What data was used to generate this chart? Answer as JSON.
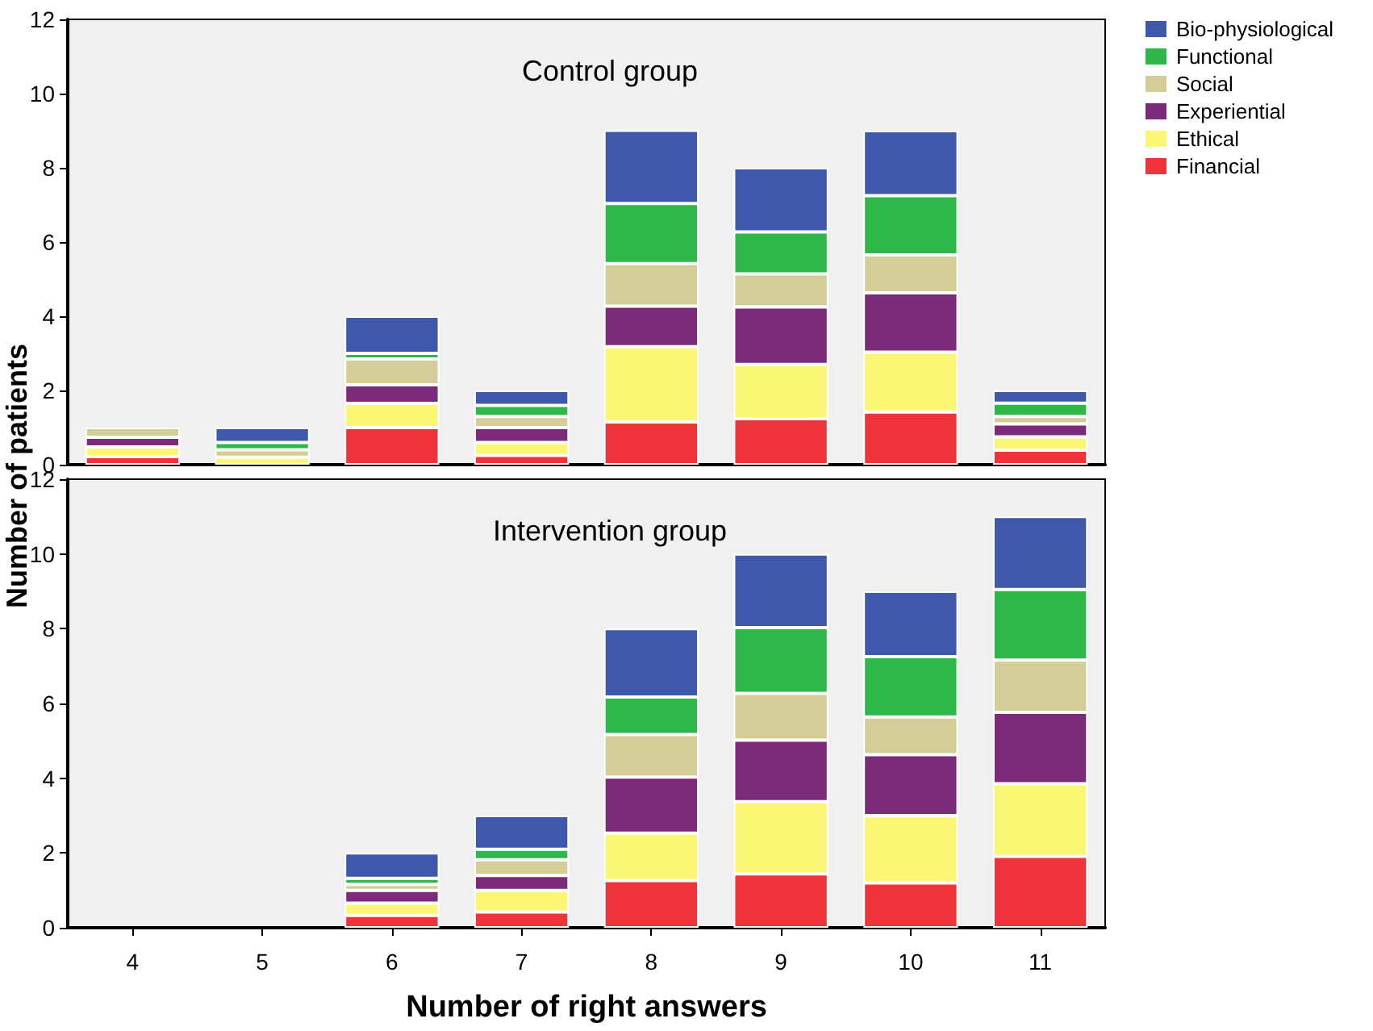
{
  "chart_data": [
    {
      "type": "bar",
      "title": "Control group",
      "ylabel": "Number of patients",
      "categories": [
        "4",
        "5",
        "6",
        "7",
        "8",
        "9",
        "10",
        "11"
      ],
      "stacked": true,
      "ylim": [
        0,
        12
      ],
      "yticks": [
        0,
        2,
        4,
        6,
        8,
        10,
        12
      ],
      "legend": "right",
      "tick_labels": "y",
      "grid": false,
      "series": [
        {
          "name": "Financial",
          "color": "#f0323a",
          "values": [
            0.22,
            0,
            1.0,
            0.25,
            1.15,
            1.24,
            1.42,
            0.39
          ]
        },
        {
          "name": "Ethical",
          "color": "#fbf774",
          "values": [
            0.26,
            0.2,
            0.65,
            0.35,
            2.03,
            1.46,
            1.61,
            0.36
          ]
        },
        {
          "name": "Experiential",
          "color": "#7c2a7a",
          "values": [
            0.26,
            0,
            0.5,
            0.4,
            1.09,
            1.55,
            1.6,
            0.35
          ]
        },
        {
          "name": "Social",
          "color": "#d4cd98",
          "values": [
            0.26,
            0.2,
            0.7,
            0.3,
            1.15,
            0.89,
            1.02,
            0.2
          ]
        },
        {
          "name": "Functional",
          "color": "#2fb84a",
          "values": [
            0,
            0.2,
            0.15,
            0.3,
            1.62,
            1.13,
            1.6,
            0.36
          ]
        },
        {
          "name": "Bio-physiological",
          "color": "#3e59ab",
          "values": [
            0,
            0.4,
            1.0,
            0.4,
            1.97,
            1.73,
            1.75,
            0.34
          ]
        }
      ]
    },
    {
      "type": "bar",
      "title": "Intervention group",
      "xlabel": "Number of right answers",
      "categories": [
        "4",
        "5",
        "6",
        "7",
        "8",
        "9",
        "10",
        "11"
      ],
      "stacked": true,
      "ylim": [
        0,
        12
      ],
      "yticks": [
        0,
        2,
        4,
        6,
        8,
        10,
        12
      ],
      "grid": false,
      "series": [
        {
          "color": "#f0323a",
          "values": [
            0,
            0,
            0.33,
            0.42,
            1.26,
            1.44,
            1.2,
            1.91
          ]
        },
        {
          "color": "#fbf774",
          "values": [
            0,
            0,
            0.33,
            0.58,
            1.27,
            1.93,
            1.8,
            1.94
          ]
        },
        {
          "color": "#7c2a7a",
          "values": [
            0,
            0,
            0.34,
            0.4,
            1.5,
            1.65,
            1.63,
            1.91
          ]
        },
        {
          "color": "#d4cd98",
          "values": [
            0,
            0,
            0.16,
            0.42,
            1.14,
            1.25,
            1.01,
            1.4
          ]
        },
        {
          "color": "#2fb84a",
          "values": [
            0,
            0,
            0.16,
            0.28,
            1.0,
            1.76,
            1.61,
            1.89
          ]
        },
        {
          "color": "#3e59ab",
          "values": [
            0,
            0,
            0.68,
            0.9,
            1.83,
            1.97,
            1.75,
            1.95
          ]
        }
      ]
    }
  ]
}
